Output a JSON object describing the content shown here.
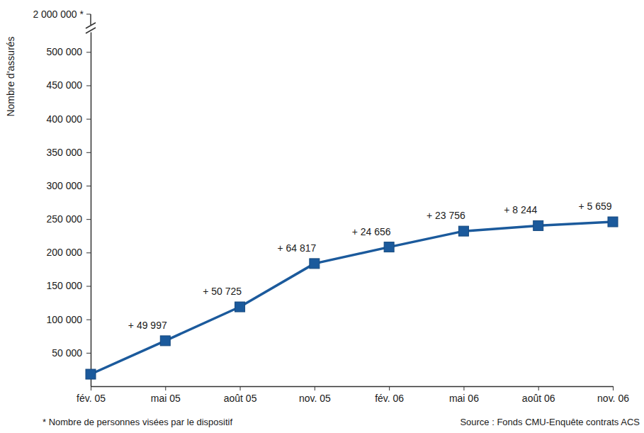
{
  "chart_data": {
    "type": "line",
    "y_label": "Nombre d'assurés",
    "categories": [
      "fév. 05",
      "mai 05",
      "août 05",
      "nov. 05",
      "fév. 06",
      "mai 06",
      "août 06",
      "nov. 06"
    ],
    "values": [
      18000,
      68000,
      118700,
      183500,
      208200,
      232000,
      240200,
      245900
    ],
    "color": "#1b5a9c",
    "marker": "square",
    "line_style": "solid",
    "ylim": [
      0,
      530000
    ],
    "yticks": [
      {
        "value": 50000,
        "label": "50 000"
      },
      {
        "value": 100000,
        "label": "100 000"
      },
      {
        "value": 150000,
        "label": "150 000"
      },
      {
        "value": 200000,
        "label": "200 000"
      },
      {
        "value": 250000,
        "label": "250 000"
      },
      {
        "value": 300000,
        "label": "300 000"
      },
      {
        "value": 350000,
        "label": "350 000"
      },
      {
        "value": 400000,
        "label": "400 000"
      },
      {
        "value": 450000,
        "label": "450 000"
      },
      {
        "value": 500000,
        "label": "500 000"
      }
    ],
    "axis_break": {
      "value": 2000000,
      "label": "2 000 000 *"
    },
    "grid": false,
    "annotations": [
      {
        "text": "+ 49 997",
        "category": "mai 05"
      },
      {
        "text": "+ 50 725",
        "category": "août 05"
      },
      {
        "text": "+ 64 817",
        "category": "nov. 05"
      },
      {
        "text": "+ 24 656",
        "category": "fév. 06"
      },
      {
        "text": "+ 23 756",
        "category": "mai 06"
      },
      {
        "text": "+ 8 244",
        "category": "août 06"
      },
      {
        "text": "+ 5 659",
        "category": "nov. 06"
      }
    ],
    "footnote": "* Nombre de personnes visées par le dispositif",
    "source": "Source : Fonds CMU-Enquête contrats ACS"
  }
}
